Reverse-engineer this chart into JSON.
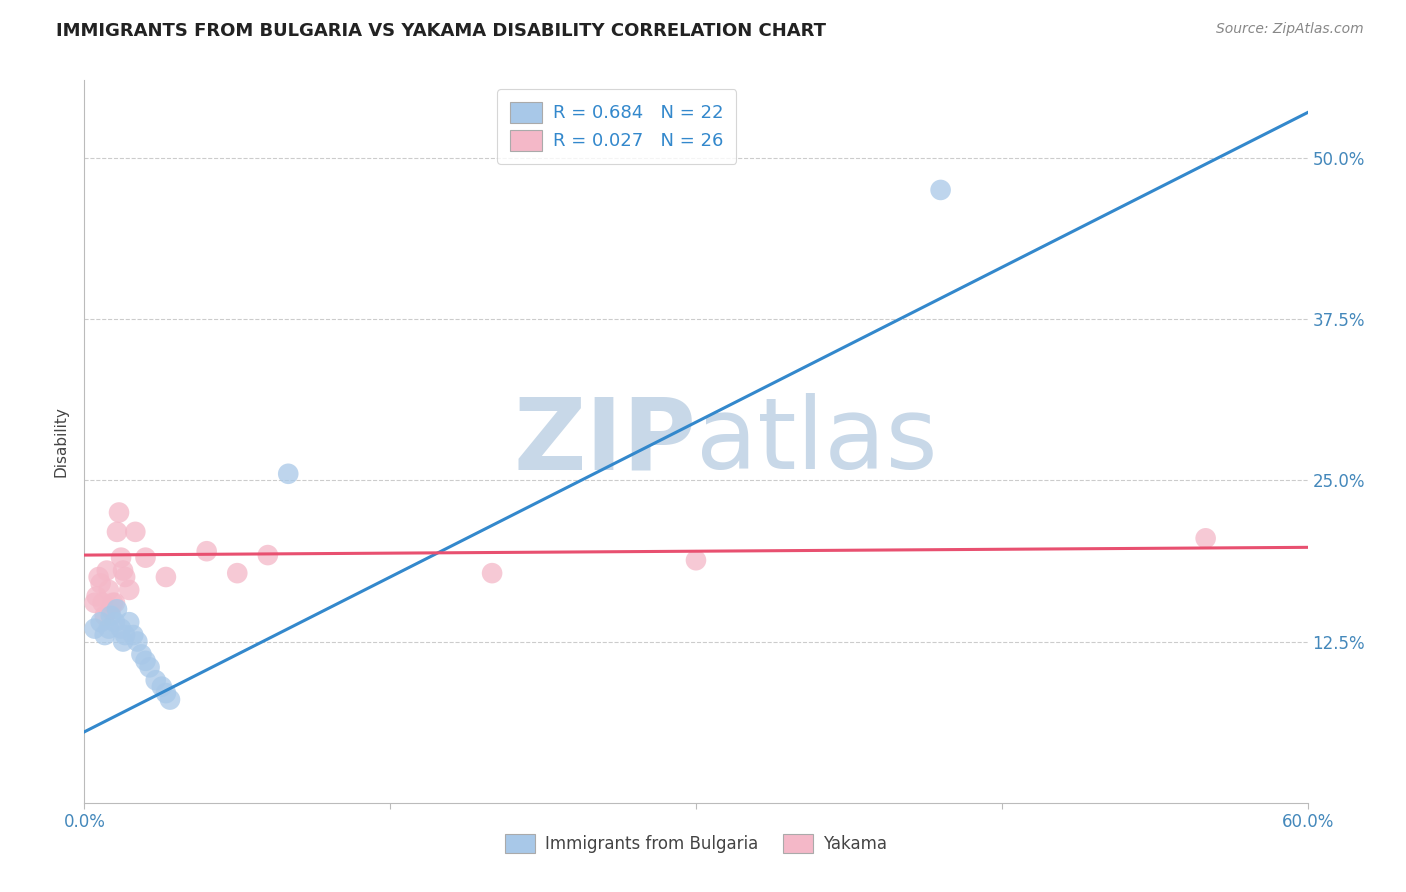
{
  "title": "IMMIGRANTS FROM BULGARIA VS YAKAMA DISABILITY CORRELATION CHART",
  "source": "Source: ZipAtlas.com",
  "ylabel": "Disability",
  "xlim": [
    0.0,
    0.6
  ],
  "ylim": [
    0.0,
    0.56
  ],
  "xticks": [
    0.0,
    0.15,
    0.3,
    0.45,
    0.6
  ],
  "xtick_labels": [
    "0.0%",
    "",
    "",
    "",
    "60.0%"
  ],
  "ytick_labels_right": [
    "12.5%",
    "25.0%",
    "37.5%",
    "50.0%"
  ],
  "ytick_vals_right": [
    0.125,
    0.25,
    0.375,
    0.5
  ],
  "blue_R": 0.684,
  "blue_N": 22,
  "pink_R": 0.027,
  "pink_N": 26,
  "blue_color": "#a8c8e8",
  "pink_color": "#f4b8c8",
  "blue_line_color": "#3388cc",
  "pink_line_color": "#e85070",
  "blue_scatter_x": [
    0.005,
    0.008,
    0.01,
    0.012,
    0.013,
    0.015,
    0.016,
    0.018,
    0.019,
    0.02,
    0.022,
    0.024,
    0.026,
    0.028,
    0.03,
    0.032,
    0.035,
    0.038,
    0.04,
    0.042,
    0.42,
    0.1
  ],
  "blue_scatter_y": [
    0.135,
    0.14,
    0.13,
    0.135,
    0.145,
    0.14,
    0.15,
    0.135,
    0.125,
    0.13,
    0.14,
    0.13,
    0.125,
    0.115,
    0.11,
    0.105,
    0.095,
    0.09,
    0.085,
    0.08,
    0.475,
    0.255
  ],
  "pink_scatter_x": [
    0.005,
    0.006,
    0.007,
    0.008,
    0.009,
    0.01,
    0.011,
    0.012,
    0.013,
    0.014,
    0.015,
    0.016,
    0.017,
    0.018,
    0.019,
    0.02,
    0.022,
    0.025,
    0.03,
    0.04,
    0.06,
    0.075,
    0.09,
    0.55,
    0.3,
    0.2
  ],
  "pink_scatter_y": [
    0.155,
    0.16,
    0.175,
    0.17,
    0.155,
    0.145,
    0.18,
    0.165,
    0.15,
    0.155,
    0.155,
    0.21,
    0.225,
    0.19,
    0.18,
    0.175,
    0.165,
    0.21,
    0.19,
    0.175,
    0.195,
    0.178,
    0.192,
    0.205,
    0.188,
    0.178
  ],
  "blue_line_x": [
    0.0,
    0.6
  ],
  "blue_line_y": [
    0.055,
    0.535
  ],
  "pink_line_x": [
    0.0,
    0.6
  ],
  "pink_line_y": [
    0.192,
    0.198
  ],
  "watermark_zip": "ZIP",
  "watermark_atlas": "atlas",
  "watermark_color": "#c8d8e8",
  "grid_color": "#cccccc",
  "background_color": "#ffffff",
  "title_fontsize": 13,
  "axis_label_color": "#4488bb",
  "legend_text_color": "#3388cc",
  "source_color": "#888888"
}
